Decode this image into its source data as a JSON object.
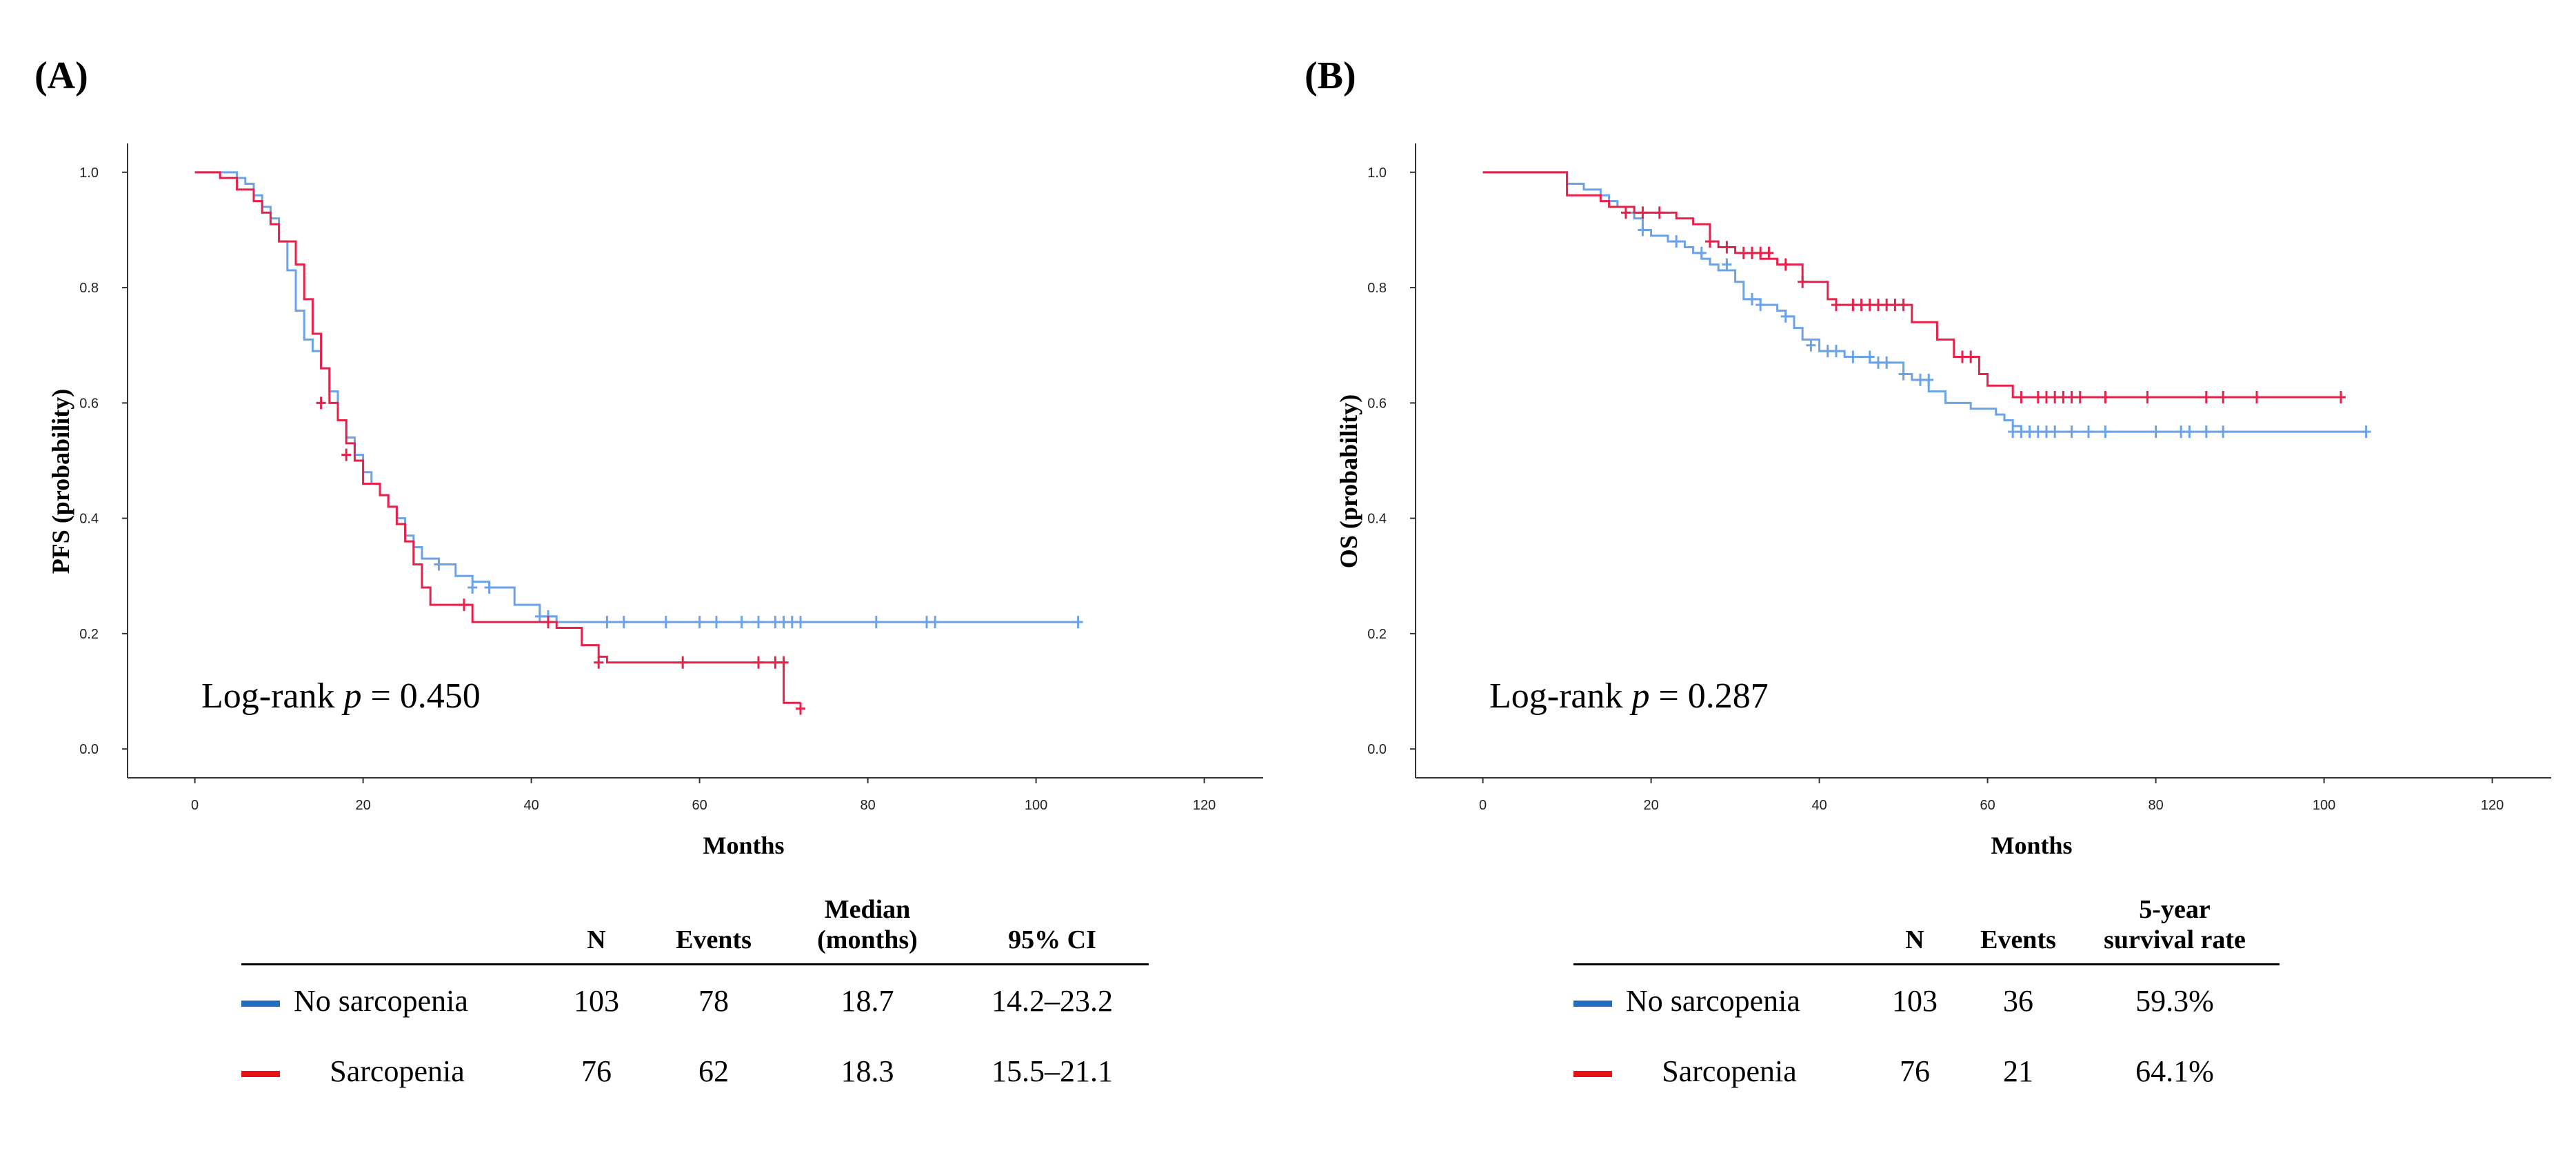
{
  "colors": {
    "no_sarcopenia": "#6BA3E8",
    "sarcopenia": "#E8204A",
    "legend_blue": "#1F6FC0",
    "legend_red": "#E8131A"
  },
  "panels": {
    "a": {
      "label": "(A)",
      "annotation_prefix": "Log-rank ",
      "annotation_p": "p",
      "annotation_suffix": " = 0.450",
      "table": {
        "headers": [
          "",
          "N",
          "Events",
          "Median\n(months)",
          "95% CI"
        ],
        "rows": [
          {
            "group": "No sarcopenia",
            "n": "103",
            "events": "78",
            "median": "18.7",
            "ci": "14.2–23.2"
          },
          {
            "group": "Sarcopenia",
            "n": "76",
            "events": "62",
            "median": "18.3",
            "ci": "15.5–21.1"
          }
        ]
      }
    },
    "b": {
      "label": "(B)",
      "annotation_prefix": "Log-rank ",
      "annotation_p": "p",
      "annotation_suffix": " = 0.287",
      "table": {
        "headers": [
          "",
          "N",
          "Events",
          "5-year\nsurvival rate"
        ],
        "rows": [
          {
            "group": "No sarcopenia",
            "n": "103",
            "events": "36",
            "survival": "59.3%"
          },
          {
            "group": "Sarcopenia",
            "n": "76",
            "events": "21",
            "survival": "64.1%"
          }
        ]
      }
    }
  },
  "chart_data": [
    {
      "type": "line",
      "subtype": "kaplan-meier",
      "title": "",
      "xlabel": "Months",
      "ylabel": "PFS (probability)",
      "xlim": [
        -8,
        127
      ],
      "ylim": [
        -0.05,
        1.05
      ],
      "xticks": [
        0,
        20,
        40,
        60,
        80,
        100,
        120
      ],
      "yticks": [
        0.0,
        0.2,
        0.4,
        0.6,
        0.8,
        1.0
      ],
      "grid": false,
      "series": [
        {
          "name": "No sarcopenia",
          "steps": [
            [
              0,
              1.0
            ],
            [
              5,
              0.99
            ],
            [
              6,
              0.98
            ],
            [
              7,
              0.96
            ],
            [
              8,
              0.94
            ],
            [
              9,
              0.92
            ],
            [
              10,
              0.88
            ],
            [
              11,
              0.83
            ],
            [
              12,
              0.76
            ],
            [
              13,
              0.71
            ],
            [
              14,
              0.69
            ],
            [
              15,
              0.66
            ],
            [
              16,
              0.62
            ],
            [
              17,
              0.57
            ],
            [
              18,
              0.54
            ],
            [
              19,
              0.51
            ],
            [
              20,
              0.48
            ],
            [
              21,
              0.46
            ],
            [
              22,
              0.44
            ],
            [
              23,
              0.42
            ],
            [
              24,
              0.4
            ],
            [
              25,
              0.37
            ],
            [
              26,
              0.35
            ],
            [
              27,
              0.33
            ],
            [
              29,
              0.32
            ],
            [
              31,
              0.3
            ],
            [
              33,
              0.29
            ],
            [
              35,
              0.28
            ],
            [
              38,
              0.25
            ],
            [
              41,
              0.23
            ],
            [
              43,
              0.22
            ]
          ],
          "end": 105,
          "censored": [
            [
              29,
              0.32
            ],
            [
              33,
              0.28
            ],
            [
              35,
              0.28
            ],
            [
              41,
              0.23
            ],
            [
              42,
              0.23
            ],
            [
              49,
              0.22
            ],
            [
              51,
              0.22
            ],
            [
              56,
              0.22
            ],
            [
              60,
              0.22
            ],
            [
              62,
              0.22
            ],
            [
              65,
              0.22
            ],
            [
              67,
              0.22
            ],
            [
              69,
              0.22
            ],
            [
              70,
              0.22
            ],
            [
              71,
              0.22
            ],
            [
              72,
              0.22
            ],
            [
              81,
              0.22
            ],
            [
              87,
              0.22
            ],
            [
              88,
              0.22
            ],
            [
              105,
              0.22
            ]
          ]
        },
        {
          "name": "Sarcopenia",
          "steps": [
            [
              0,
              1.0
            ],
            [
              3,
              0.99
            ],
            [
              5,
              0.97
            ],
            [
              7,
              0.95
            ],
            [
              8,
              0.93
            ],
            [
              9,
              0.91
            ],
            [
              10,
              0.88
            ],
            [
              12,
              0.84
            ],
            [
              13,
              0.78
            ],
            [
              14,
              0.72
            ],
            [
              15,
              0.66
            ],
            [
              16,
              0.6
            ],
            [
              17,
              0.57
            ],
            [
              18,
              0.53
            ],
            [
              19,
              0.5
            ],
            [
              20,
              0.46
            ],
            [
              22,
              0.44
            ],
            [
              23,
              0.42
            ],
            [
              24,
              0.39
            ],
            [
              25,
              0.36
            ],
            [
              26,
              0.32
            ],
            [
              27,
              0.28
            ],
            [
              28,
              0.25
            ],
            [
              33,
              0.22
            ],
            [
              43,
              0.21
            ],
            [
              46,
              0.18
            ],
            [
              48,
              0.16
            ],
            [
              49,
              0.15
            ],
            [
              70,
              0.08
            ]
          ],
          "end": 72,
          "censored": [
            [
              15,
              0.6
            ],
            [
              18,
              0.51
            ],
            [
              32,
              0.25
            ],
            [
              42,
              0.22
            ],
            [
              48,
              0.15
            ],
            [
              58,
              0.15
            ],
            [
              67,
              0.15
            ],
            [
              69,
              0.15
            ],
            [
              70,
              0.15
            ],
            [
              72,
              0.07
            ]
          ]
        }
      ]
    },
    {
      "type": "line",
      "subtype": "kaplan-meier",
      "title": "",
      "xlabel": "Months",
      "ylabel": "OS (probability)",
      "xlim": [
        -8,
        127
      ],
      "ylim": [
        -0.05,
        1.05
      ],
      "xticks": [
        0,
        20,
        40,
        60,
        80,
        100,
        120
      ],
      "yticks": [
        0.0,
        0.2,
        0.4,
        0.6,
        0.8,
        1.0
      ],
      "grid": false,
      "series": [
        {
          "name": "No sarcopenia",
          "steps": [
            [
              0,
              1.0
            ],
            [
              10,
              0.98
            ],
            [
              12,
              0.97
            ],
            [
              14,
              0.96
            ],
            [
              15,
              0.95
            ],
            [
              16,
              0.94
            ],
            [
              17,
              0.93
            ],
            [
              18,
              0.92
            ],
            [
              19,
              0.9
            ],
            [
              20,
              0.89
            ],
            [
              22,
              0.88
            ],
            [
              24,
              0.87
            ],
            [
              25,
              0.86
            ],
            [
              26,
              0.85
            ],
            [
              27,
              0.84
            ],
            [
              28,
              0.83
            ],
            [
              30,
              0.81
            ],
            [
              31,
              0.78
            ],
            [
              33,
              0.77
            ],
            [
              35,
              0.76
            ],
            [
              36,
              0.75
            ],
            [
              37,
              0.73
            ],
            [
              38,
              0.71
            ],
            [
              40,
              0.69
            ],
            [
              43,
              0.68
            ],
            [
              46,
              0.67
            ],
            [
              50,
              0.65
            ],
            [
              51,
              0.64
            ],
            [
              53,
              0.62
            ],
            [
              55,
              0.6
            ],
            [
              58,
              0.59
            ],
            [
              61,
              0.58
            ],
            [
              62,
              0.57
            ],
            [
              63,
              0.56
            ],
            [
              64,
              0.55
            ]
          ],
          "end": 105,
          "censored": [
            [
              19,
              0.9
            ],
            [
              23,
              0.88
            ],
            [
              26,
              0.86
            ],
            [
              29,
              0.84
            ],
            [
              32,
              0.78
            ],
            [
              33,
              0.77
            ],
            [
              36,
              0.75
            ],
            [
              39,
              0.7
            ],
            [
              41,
              0.69
            ],
            [
              42,
              0.69
            ],
            [
              44,
              0.68
            ],
            [
              46,
              0.68
            ],
            [
              47,
              0.67
            ],
            [
              48,
              0.67
            ],
            [
              50,
              0.65
            ],
            [
              52,
              0.64
            ],
            [
              53,
              0.64
            ],
            [
              63,
              0.55
            ],
            [
              64,
              0.55
            ],
            [
              65,
              0.55
            ],
            [
              66,
              0.55
            ],
            [
              67,
              0.55
            ],
            [
              68,
              0.55
            ],
            [
              70,
              0.55
            ],
            [
              72,
              0.55
            ],
            [
              74,
              0.55
            ],
            [
              80,
              0.55
            ],
            [
              83,
              0.55
            ],
            [
              84,
              0.55
            ],
            [
              86,
              0.55
            ],
            [
              88,
              0.55
            ],
            [
              105,
              0.55
            ]
          ]
        },
        {
          "name": "Sarcopenia",
          "steps": [
            [
              0,
              1.0
            ],
            [
              10,
              0.96
            ],
            [
              14,
              0.95
            ],
            [
              15,
              0.94
            ],
            [
              18,
              0.93
            ],
            [
              23,
              0.92
            ],
            [
              25,
              0.91
            ],
            [
              27,
              0.88
            ],
            [
              28,
              0.87
            ],
            [
              30,
              0.86
            ],
            [
              33,
              0.85
            ],
            [
              35,
              0.84
            ],
            [
              38,
              0.81
            ],
            [
              41,
              0.78
            ],
            [
              42,
              0.77
            ],
            [
              51,
              0.74
            ],
            [
              54,
              0.71
            ],
            [
              56,
              0.68
            ],
            [
              59,
              0.65
            ],
            [
              60,
              0.63
            ],
            [
              63,
              0.61
            ]
          ],
          "end": 102,
          "censored": [
            [
              17,
              0.93
            ],
            [
              19,
              0.93
            ],
            [
              21,
              0.93
            ],
            [
              27,
              0.88
            ],
            [
              29,
              0.87
            ],
            [
              31,
              0.86
            ],
            [
              32,
              0.86
            ],
            [
              33,
              0.86
            ],
            [
              34,
              0.86
            ],
            [
              36,
              0.84
            ],
            [
              38,
              0.81
            ],
            [
              42,
              0.77
            ],
            [
              44,
              0.77
            ],
            [
              45,
              0.77
            ],
            [
              46,
              0.77
            ],
            [
              47,
              0.77
            ],
            [
              48,
              0.77
            ],
            [
              49,
              0.77
            ],
            [
              50,
              0.77
            ],
            [
              57,
              0.68
            ],
            [
              58,
              0.68
            ],
            [
              64,
              0.61
            ],
            [
              66,
              0.61
            ],
            [
              67,
              0.61
            ],
            [
              68,
              0.61
            ],
            [
              69,
              0.61
            ],
            [
              70,
              0.61
            ],
            [
              71,
              0.61
            ],
            [
              74,
              0.61
            ],
            [
              79,
              0.61
            ],
            [
              86,
              0.61
            ],
            [
              88,
              0.61
            ],
            [
              92,
              0.61
            ],
            [
              102,
              0.61
            ]
          ]
        }
      ]
    }
  ]
}
